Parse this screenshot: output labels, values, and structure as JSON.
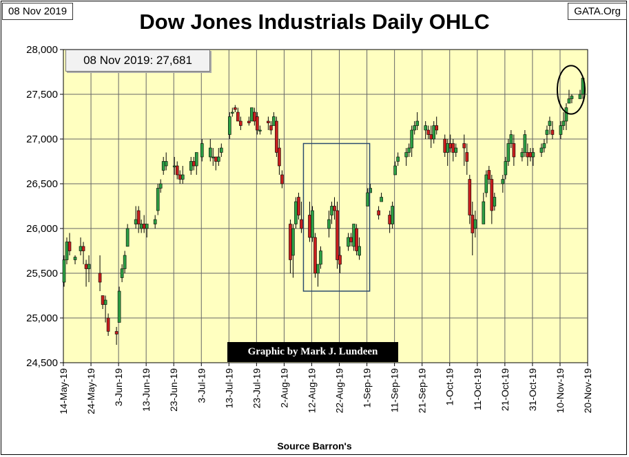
{
  "header": {
    "date_label": "08 Nov 2019",
    "source_label": "GATA.Org"
  },
  "title": "Dow Jones Industrials Daily OHLC",
  "annotation": {
    "last_close": "08 Nov 2019: 27,681",
    "credit": "Graphic by Mark J. Lundeen"
  },
  "footer": {
    "source": "Source Barron's"
  },
  "colors": {
    "plot_bg": "#ffffc0",
    "up": "#2d9e44",
    "down": "#c81e1e",
    "box": "#2a4a6e"
  },
  "chart_data": {
    "type": "ohlc",
    "title": "Dow Jones Industrials Daily OHLC",
    "xlabel": "Source Barron's",
    "ylabel": "",
    "ylim": [
      24500,
      28000
    ],
    "yticks": [
      24500,
      25000,
      25500,
      26000,
      26500,
      27000,
      27500,
      28000
    ],
    "ytick_labels": [
      "24,500",
      "25,000",
      "25,500",
      "26,000",
      "26,500",
      "27,000",
      "27,500",
      "28,000"
    ],
    "x_start": "14-May-19",
    "x_range_days": [
      0,
      190
    ],
    "xticks": [
      {
        "day": 0,
        "label": "14-May-19"
      },
      {
        "day": 10,
        "label": "24-May-19"
      },
      {
        "day": 20,
        "label": "3-Jun-19"
      },
      {
        "day": 30,
        "label": "13-Jun-19"
      },
      {
        "day": 40,
        "label": "23-Jun-19"
      },
      {
        "day": 50,
        "label": "3-Jul-19"
      },
      {
        "day": 60,
        "label": "13-Jul-19"
      },
      {
        "day": 70,
        "label": "23-Jul-19"
      },
      {
        "day": 80,
        "label": "2-Aug-19"
      },
      {
        "day": 90,
        "label": "12-Aug-19"
      },
      {
        "day": 100,
        "label": "22-Aug-19"
      },
      {
        "day": 110,
        "label": "1-Sep-19"
      },
      {
        "day": 120,
        "label": "11-Sep-19"
      },
      {
        "day": 130,
        "label": "21-Sep-19"
      },
      {
        "day": 140,
        "label": "1-Oct-19"
      },
      {
        "day": 150,
        "label": "11-Oct-19"
      },
      {
        "day": 160,
        "label": "21-Oct-19"
      },
      {
        "day": 170,
        "label": "31-Oct-19"
      },
      {
        "day": 180,
        "label": "10-Nov-19"
      },
      {
        "day": 190,
        "label": "20-Nov-19"
      }
    ],
    "columns": [
      "day",
      "open",
      "high",
      "low",
      "close"
    ],
    "series": [
      [
        0,
        25400,
        25700,
        25350,
        25650
      ],
      [
        1,
        25650,
        25900,
        25600,
        25850
      ],
      [
        2,
        25850,
        25950,
        25700,
        25750
      ],
      [
        4,
        25650,
        25700,
        25600,
        25680
      ],
      [
        6,
        25750,
        25900,
        25700,
        25800
      ],
      [
        7,
        25800,
        25850,
        25600,
        25750
      ],
      [
        8,
        25600,
        25650,
        25350,
        25550
      ],
      [
        9,
        25550,
        25700,
        25400,
        25600
      ],
      [
        13,
        25500,
        25700,
        25300,
        25400
      ],
      [
        14,
        25250,
        25250,
        25100,
        25150
      ],
      [
        15,
        25150,
        25250,
        24950,
        25200
      ],
      [
        16,
        25000,
        25050,
        24800,
        24850
      ],
      [
        19,
        24850,
        24900,
        24700,
        24820
      ],
      [
        20,
        24950,
        25350,
        24950,
        25300
      ],
      [
        21,
        25450,
        25600,
        25400,
        25550
      ],
      [
        22,
        25550,
        25750,
        25500,
        25700
      ],
      [
        23,
        25800,
        26050,
        25800,
        26000
      ],
      [
        26,
        26050,
        26250,
        26000,
        26100
      ],
      [
        27,
        26200,
        26250,
        25950,
        26050
      ],
      [
        28,
        26000,
        26100,
        25950,
        26050
      ],
      [
        29,
        26050,
        26150,
        25950,
        26000
      ],
      [
        30,
        26000,
        26050,
        25900,
        26050
      ],
      [
        33,
        26050,
        26150,
        26000,
        26100
      ],
      [
        34,
        26200,
        26500,
        26150,
        26450
      ],
      [
        35,
        26450,
        26550,
        26400,
        26500
      ],
      [
        36,
        26650,
        26800,
        26600,
        26750
      ],
      [
        37,
        26700,
        26850,
        26650,
        26750
      ],
      [
        40,
        26700,
        26800,
        26600,
        26700
      ],
      [
        41,
        26700,
        26750,
        26550,
        26600
      ],
      [
        42,
        26600,
        26650,
        26500,
        26550
      ],
      [
        43,
        26550,
        26700,
        26500,
        26600
      ],
      [
        46,
        26650,
        26800,
        26600,
        26750
      ],
      [
        47,
        26750,
        26800,
        26650,
        26700
      ],
      [
        48,
        26700,
        26800,
        26600,
        26850
      ],
      [
        50,
        26800,
        27000,
        26750,
        26950
      ],
      [
        53,
        26800,
        27000,
        26750,
        26900
      ],
      [
        54,
        26800,
        26900,
        26700,
        26800
      ],
      [
        55,
        26800,
        26750,
        26650,
        26750
      ],
      [
        56,
        26750,
        26900,
        26700,
        26800
      ],
      [
        57,
        26850,
        26950,
        26800,
        26900
      ],
      [
        60,
        27050,
        27300,
        27000,
        27250
      ],
      [
        61,
        27300,
        27350,
        27250,
        27300
      ],
      [
        62,
        27350,
        27380,
        27300,
        27330
      ],
      [
        63,
        27300,
        27350,
        27200,
        27200
      ],
      [
        64,
        27200,
        27250,
        27100,
        27150
      ],
      [
        67,
        27200,
        27250,
        27150,
        27180
      ],
      [
        68,
        27200,
        27300,
        27200,
        27350
      ],
      [
        69,
        27300,
        27350,
        27150,
        27200
      ],
      [
        70,
        27250,
        27300,
        27050,
        27100
      ],
      [
        71,
        27100,
        27150,
        27050,
        27100
      ],
      [
        74,
        27200,
        27250,
        27100,
        27180
      ],
      [
        75,
        27150,
        27200,
        27050,
        27100
      ],
      [
        76,
        27150,
        27300,
        27150,
        27250
      ],
      [
        77,
        27200,
        27250,
        26800,
        26850
      ],
      [
        78,
        26900,
        27000,
        26600,
        26700
      ],
      [
        79,
        26600,
        26650,
        26450,
        26500
      ],
      [
        82,
        26050,
        26100,
        25500,
        25650
      ],
      [
        83,
        25700,
        26050,
        25450,
        26000
      ],
      [
        84,
        26050,
        26350,
        26000,
        26300
      ],
      [
        85,
        26350,
        26400,
        26100,
        26150
      ],
      [
        86,
        26100,
        26300,
        25950,
        26000
      ],
      [
        89,
        26150,
        26300,
        25850,
        25900
      ],
      [
        90,
        25900,
        26250,
        25850,
        26200
      ],
      [
        91,
        25900,
        25950,
        25450,
        25500
      ],
      [
        92,
        25500,
        25600,
        25350,
        25600
      ],
      [
        93,
        25600,
        25800,
        25550,
        25750
      ],
      [
        96,
        26000,
        26200,
        25900,
        26100
      ],
      [
        97,
        26150,
        26300,
        26050,
        26250
      ],
      [
        98,
        26250,
        26350,
        26100,
        26200
      ],
      [
        99,
        26200,
        26300,
        25550,
        25650
      ],
      [
        100,
        25700,
        25800,
        25500,
        25600
      ],
      [
        103,
        25800,
        25950,
        25750,
        25900
      ],
      [
        104,
        25900,
        25950,
        25800,
        25850
      ],
      [
        105,
        25800,
        26050,
        25750,
        26050
      ],
      [
        106,
        26000,
        26050,
        25700,
        25750
      ],
      [
        107,
        25700,
        25900,
        25650,
        25800
      ],
      [
        110,
        26250,
        26450,
        26250,
        26400
      ],
      [
        111,
        26400,
        26500,
        26400,
        26450
      ],
      [
        114,
        26200,
        26250,
        26100,
        26150
      ],
      [
        115,
        26300,
        26400,
        26300,
        26350
      ],
      [
        118,
        26150,
        26200,
        25950,
        26050
      ],
      [
        119,
        26050,
        26300,
        26000,
        26250
      ],
      [
        120,
        26600,
        26750,
        26600,
        26700
      ],
      [
        121,
        26750,
        26850,
        26700,
        26800
      ],
      [
        124,
        26800,
        26900,
        26700,
        26850
      ],
      [
        125,
        26850,
        26950,
        26800,
        26900
      ],
      [
        126,
        26900,
        27150,
        26800,
        27100
      ],
      [
        127,
        27100,
        27200,
        27050,
        27150
      ],
      [
        128,
        27150,
        27300,
        27100,
        27200
      ],
      [
        131,
        27100,
        27200,
        27000,
        27150
      ],
      [
        132,
        27100,
        27150,
        27000,
        27050
      ],
      [
        133,
        27050,
        27150,
        26900,
        27000
      ],
      [
        134,
        27000,
        27200,
        26950,
        27150
      ],
      [
        135,
        27150,
        27250,
        27050,
        27100
      ],
      [
        138,
        27000,
        27050,
        26800,
        26850
      ],
      [
        139,
        26850,
        27000,
        26700,
        26950
      ],
      [
        140,
        26950,
        27050,
        26850,
        26900
      ],
      [
        141,
        26950,
        27000,
        26750,
        26850
      ],
      [
        142,
        26850,
        26950,
        26800,
        26900
      ],
      [
        145,
        26950,
        27050,
        26700,
        26900
      ],
      [
        146,
        26850,
        26950,
        26600,
        26750
      ],
      [
        147,
        26550,
        26600,
        26050,
        26150
      ],
      [
        148,
        26150,
        26300,
        25700,
        25950
      ],
      [
        149,
        26000,
        26200,
        25900,
        26100
      ],
      [
        152,
        26050,
        26400,
        26050,
        26300
      ],
      [
        153,
        26400,
        26650,
        26350,
        26600
      ],
      [
        154,
        26650,
        26700,
        26500,
        26550
      ],
      [
        155,
        26550,
        26600,
        26050,
        26200
      ],
      [
        156,
        26250,
        26400,
        26200,
        26350
      ],
      [
        159,
        26500,
        26600,
        26400,
        26550
      ],
      [
        160,
        26600,
        26800,
        26550,
        26750
      ],
      [
        161,
        26750,
        27000,
        26700,
        26950
      ],
      [
        162,
        26950,
        27100,
        26900,
        27050
      ],
      [
        163,
        26950,
        27050,
        26700,
        26800
      ],
      [
        166,
        26800,
        26900,
        26750,
        26850
      ],
      [
        167,
        26850,
        27100,
        26800,
        27050
      ],
      [
        168,
        26850,
        26950,
        26700,
        26800
      ],
      [
        169,
        26850,
        26900,
        26750,
        26800
      ],
      [
        170,
        26800,
        26900,
        26700,
        26850
      ],
      [
        173,
        26850,
        26950,
        26800,
        26900
      ],
      [
        174,
        26900,
        27000,
        26850,
        26950
      ],
      [
        175,
        27050,
        27150,
        26950,
        27100
      ],
      [
        176,
        27150,
        27250,
        27050,
        27200
      ],
      [
        177,
        27100,
        27200,
        27000,
        27050
      ],
      [
        180,
        27050,
        27200,
        27000,
        27150
      ],
      [
        181,
        27150,
        27300,
        27100,
        27200
      ],
      [
        182,
        27200,
        27400,
        27100,
        27350
      ],
      [
        183,
        27400,
        27550,
        27400,
        27450
      ],
      [
        184,
        27450,
        27500,
        27400,
        27480
      ],
      [
        187,
        27450,
        27550,
        27450,
        27500
      ],
      [
        188,
        27500,
        27700,
        27450,
        27681
      ]
    ],
    "highlights": [
      {
        "shape": "rectangle",
        "x_range_days": [
          87,
          111
        ],
        "y_range": [
          25300,
          26950
        ]
      },
      {
        "shape": "ellipse",
        "center_day": 184,
        "center_value": 27550,
        "day_radius": 5,
        "value_radius": 270
      }
    ]
  }
}
